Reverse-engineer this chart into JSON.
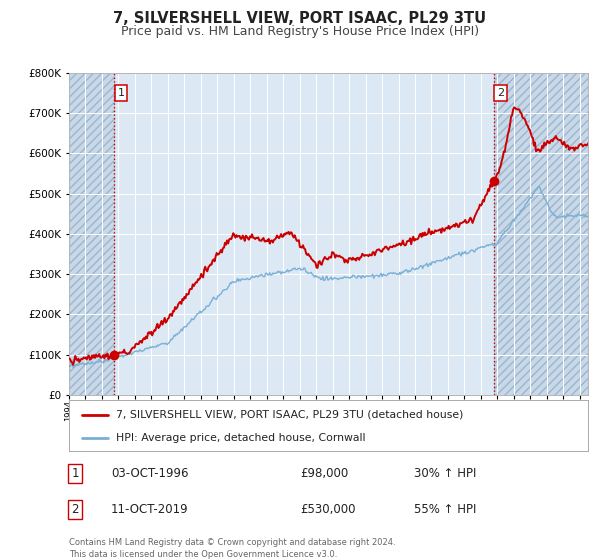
{
  "title": "7, SILVERSHELL VIEW, PORT ISAAC, PL29 3TU",
  "subtitle": "Price paid vs. HM Land Registry's House Price Index (HPI)",
  "title_fontsize": 10.5,
  "subtitle_fontsize": 9,
  "background_color": "#ffffff",
  "plot_bg_color": "#dce9f5",
  "grid_color": "#ffffff",
  "ylim": [
    0,
    800000
  ],
  "yticks": [
    0,
    100000,
    200000,
    300000,
    400000,
    500000,
    600000,
    700000,
    800000
  ],
  "xlim_start": 1994.0,
  "xlim_end": 2025.5,
  "sale1_x": 1996.75,
  "sale1_y": 98000,
  "sale1_label": "1",
  "sale1_date": "03-OCT-1996",
  "sale1_price": "£98,000",
  "sale1_hpi": "30% ↑ HPI",
  "sale2_x": 2019.78,
  "sale2_y": 530000,
  "sale2_label": "2",
  "sale2_date": "11-OCT-2019",
  "sale2_price": "£530,000",
  "sale2_hpi": "55% ↑ HPI",
  "property_line_color": "#cc0000",
  "hpi_line_color": "#7aafd4",
  "legend_property_label": "7, SILVERSHELL VIEW, PORT ISAAC, PL29 3TU (detached house)",
  "legend_hpi_label": "HPI: Average price, detached house, Cornwall",
  "footnote": "Contains HM Land Registry data © Crown copyright and database right 2024.\nThis data is licensed under the Open Government Licence v3.0.",
  "hatch_edgecolor": "#9ab5cc"
}
